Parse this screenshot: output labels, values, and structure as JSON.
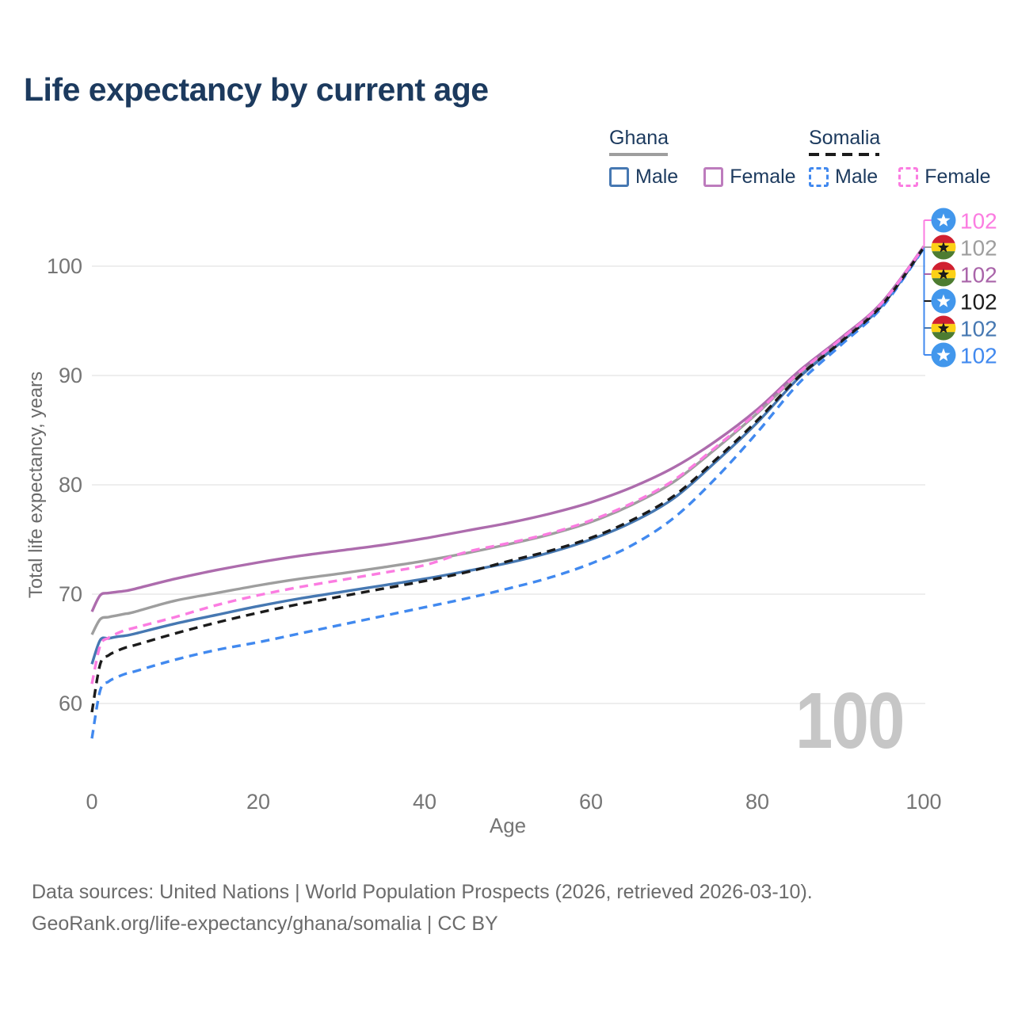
{
  "title": "Life expectancy by current age",
  "legend": {
    "groups": [
      {
        "label": "Ghana",
        "line_style": "solid",
        "line_color": "#9e9e9e",
        "items": [
          {
            "label": "Male",
            "color": "#4678b2",
            "style": "solid"
          },
          {
            "label": "Female",
            "color": "#bd7cbd",
            "style": "solid"
          }
        ]
      },
      {
        "label": "Somalia",
        "line_style": "dashed",
        "line_color": "#1b1b1b",
        "items": [
          {
            "label": "Male",
            "color": "#4189ef",
            "style": "dashed"
          },
          {
            "label": "Female",
            "color": "#fb7ce1",
            "style": "dashed"
          }
        ]
      }
    ]
  },
  "axes": {
    "x_label": "Age",
    "y_label": "Total life expectancy, years",
    "x_ticks": [
      0,
      20,
      40,
      60,
      80,
      100
    ],
    "y_ticks": [
      60,
      70,
      80,
      90,
      100
    ]
  },
  "chart_data": {
    "type": "line",
    "title": "Life expectancy by current age",
    "xlabel": "Age",
    "ylabel": "Total life expectancy, years",
    "xlim": [
      0,
      100
    ],
    "ylim": [
      56,
      104
    ],
    "grid": "horizontal",
    "legend_position": "top-right",
    "x_ticks": [
      0,
      20,
      40,
      60,
      80,
      100
    ],
    "y_ticks": [
      60,
      70,
      80,
      90,
      100
    ],
    "ages": [
      0,
      1,
      2,
      3,
      4,
      5,
      10,
      15,
      20,
      25,
      30,
      35,
      40,
      45,
      50,
      55,
      60,
      65,
      70,
      75,
      80,
      85,
      90,
      95,
      100
    ],
    "series": [
      {
        "name": "Ghana (both sexes)",
        "country": "Ghana",
        "group": "both",
        "color": "#9e9e9e",
        "dash": false,
        "values": [
          66.3,
          67.7,
          67.9,
          68.05,
          68.2,
          68.35,
          69.4,
          70.1,
          70.8,
          71.4,
          71.9,
          72.45,
          73.05,
          73.75,
          74.55,
          75.45,
          76.6,
          78.2,
          80.3,
          83.3,
          86.55,
          90.15,
          93.25,
          96.6,
          101.7
        ]
      },
      {
        "name": "Ghana Male",
        "country": "Ghana",
        "group": "male",
        "color": "#4678b2",
        "dash": false,
        "values": [
          63.6,
          65.8,
          65.95,
          66.1,
          66.2,
          66.35,
          67.3,
          68.1,
          68.9,
          69.6,
          70.2,
          70.8,
          71.4,
          72.1,
          72.85,
          73.8,
          75.0,
          76.6,
          78.8,
          82.1,
          85.7,
          89.8,
          93.0,
          96.4,
          101.65
        ]
      },
      {
        "name": "Ghana Female",
        "country": "Ghana",
        "group": "female",
        "color": "#ad6cad",
        "dash": false,
        "values": [
          68.4,
          69.9,
          70.1,
          70.2,
          70.3,
          70.45,
          71.4,
          72.2,
          72.9,
          73.5,
          74.0,
          74.5,
          75.1,
          75.8,
          76.5,
          77.35,
          78.4,
          79.8,
          81.6,
          84.0,
          86.9,
          90.4,
          93.4,
          96.7,
          101.8
        ]
      },
      {
        "name": "Somalia Male",
        "country": "Somalia",
        "group": "male",
        "color": "#4189ef",
        "dash": true,
        "values": [
          56.8,
          61.2,
          62.0,
          62.4,
          62.7,
          62.9,
          64.0,
          64.9,
          65.6,
          66.4,
          67.2,
          68.0,
          68.8,
          69.6,
          70.5,
          71.5,
          72.8,
          74.5,
          77.0,
          80.6,
          84.8,
          89.3,
          92.75,
          96.25,
          101.6
        ]
      },
      {
        "name": "Somalia (both sexes)",
        "country": "Somalia",
        "group": "both",
        "color": "#1b1b1b",
        "dash": true,
        "values": [
          59.2,
          63.6,
          64.4,
          64.8,
          65.1,
          65.3,
          66.4,
          67.4,
          68.3,
          69.1,
          69.8,
          70.5,
          71.2,
          72.0,
          73.0,
          73.95,
          75.15,
          76.8,
          79.0,
          82.3,
          85.9,
          89.9,
          93.05,
          96.45,
          101.7
        ]
      },
      {
        "name": "Somalia Female",
        "country": "Somalia",
        "group": "female",
        "color": "#fb7ce1",
        "dash": true,
        "values": [
          61.8,
          65.3,
          66.0,
          66.4,
          66.7,
          66.9,
          67.9,
          69.0,
          69.9,
          70.65,
          71.3,
          71.95,
          72.65,
          73.85,
          74.65,
          75.55,
          76.75,
          78.35,
          80.45,
          83.45,
          86.65,
          90.25,
          93.3,
          96.65,
          101.75
        ]
      }
    ]
  },
  "end_labels": [
    {
      "series": "Somalia Female",
      "flag": "somalia-flag-icon",
      "value": "102",
      "color": "#fb7ce1"
    },
    {
      "series": "Ghana (both sexes)",
      "flag": "ghana-flag-icon",
      "value": "102",
      "color": "#9e9e9e"
    },
    {
      "series": "Ghana Female",
      "flag": "ghana-flag-icon",
      "value": "102",
      "color": "#a964a9"
    },
    {
      "series": "Somalia (both sexes)",
      "flag": "somalia-flag-icon",
      "value": "102",
      "color": "#1b1b1b"
    },
    {
      "series": "Ghana Male",
      "flag": "ghana-flag-icon",
      "value": "102",
      "color": "#4678b2"
    },
    {
      "series": "Somalia Male",
      "flag": "somalia-flag-icon",
      "value": "102",
      "color": "#4189ef"
    }
  ],
  "flag_colors": {
    "ghana_red": "#d02030",
    "ghana_gold": "#fcd116",
    "ghana_green": "#4d7c31",
    "ghana_star": "#1b1b1b",
    "somalia_blue": "#4297ec",
    "somalia_star": "#ffffff"
  },
  "age_counter": "100",
  "footer": {
    "line1": "Data sources: United Nations | World Population Prospects (2026, retrieved 2026-03-10).",
    "line2": "GeoRank.org/life-expectancy/ghana/somalia | CC BY"
  }
}
